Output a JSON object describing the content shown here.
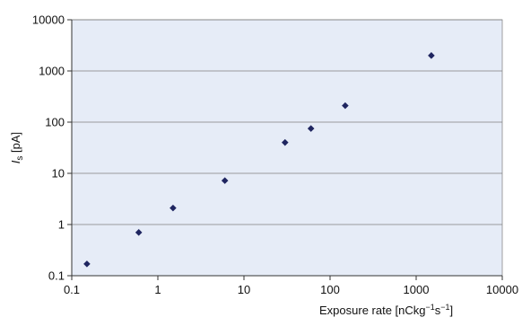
{
  "chart_data": {
    "type": "scatter",
    "title": "",
    "xlabel": "Exposure rate [nCkg−1s−1]",
    "xlabel_parts": {
      "main": "Exposure rate [nCkg",
      "sup1": "−1",
      "mid": "s",
      "sup2": "−1",
      "end": "]"
    },
    "ylabel": "Is [pA]",
    "ylabel_parts": {
      "main": "I",
      "sub": "s",
      "end": " [pA]"
    },
    "x_scale": "log",
    "y_scale": "log",
    "xlim": [
      0.1,
      10000
    ],
    "ylim": [
      0.1,
      10000
    ],
    "x_ticks": [
      0.1,
      1,
      10,
      100,
      1000,
      10000
    ],
    "x_tick_labels": [
      "0.1",
      "1",
      "10",
      "100",
      "1000",
      "10000"
    ],
    "y_ticks": [
      0.1,
      1,
      10,
      100,
      1000,
      10000
    ],
    "y_tick_labels": [
      "0.1",
      "1",
      "10",
      "100",
      "1000",
      "10000"
    ],
    "grid": "horizontal",
    "legend": "none",
    "marker": "diamond",
    "colors": {
      "plot_bg": "#e6ecf7",
      "marker": "#1f2560",
      "grid": "#7f7f7f"
    },
    "series": [
      {
        "x": [
          0.15,
          0.6,
          1.5,
          6,
          30,
          60,
          150,
          1500
        ],
        "y": [
          0.17,
          0.7,
          2.1,
          7.2,
          40,
          75,
          210,
          2000
        ]
      }
    ]
  }
}
